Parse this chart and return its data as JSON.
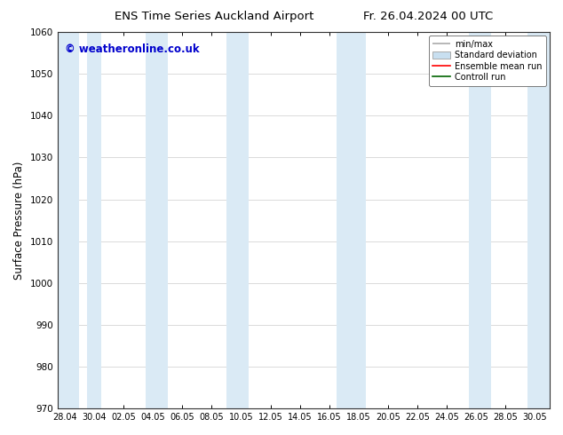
{
  "title": "ENS Time Series Auckland Airport",
  "title2": "Fr. 26.04.2024 00 UTC",
  "ylabel": "Surface Pressure (hPa)",
  "ylim": [
    970,
    1060
  ],
  "yticks": [
    970,
    980,
    990,
    1000,
    1010,
    1020,
    1030,
    1040,
    1050,
    1060
  ],
  "xlabel_ticks": [
    "28.04",
    "30.04",
    "02.05",
    "04.05",
    "06.05",
    "08.05",
    "10.05",
    "12.05",
    "14.05",
    "16.05",
    "18.05",
    "20.05",
    "22.05",
    "24.05",
    "26.05",
    "28.05",
    "30.05"
  ],
  "x_positions": [
    0,
    2,
    4,
    6,
    8,
    10,
    12,
    14,
    16,
    18,
    20,
    22,
    24,
    26,
    28,
    30,
    32
  ],
  "xlim_start": -0.5,
  "xlim_end": 33,
  "watermark": "© weatheronline.co.uk",
  "bg_color": "#ffffff",
  "plot_bg_color": "#ffffff",
  "band_color": "#daeaf5",
  "legend_entries": [
    "min/max",
    "Standard deviation",
    "Ensemble mean run",
    "Controll run"
  ],
  "bands": [
    {
      "x_start": -0.5,
      "x_end": 1.0
    },
    {
      "x_start": 1.5,
      "x_end": 2.5
    },
    {
      "x_start": 5.5,
      "x_end": 7.0
    },
    {
      "x_start": 11.0,
      "x_end": 12.5
    },
    {
      "x_start": 18.5,
      "x_end": 20.5
    },
    {
      "x_start": 27.5,
      "x_end": 29.0
    },
    {
      "x_start": 31.5,
      "x_end": 33.0
    }
  ]
}
